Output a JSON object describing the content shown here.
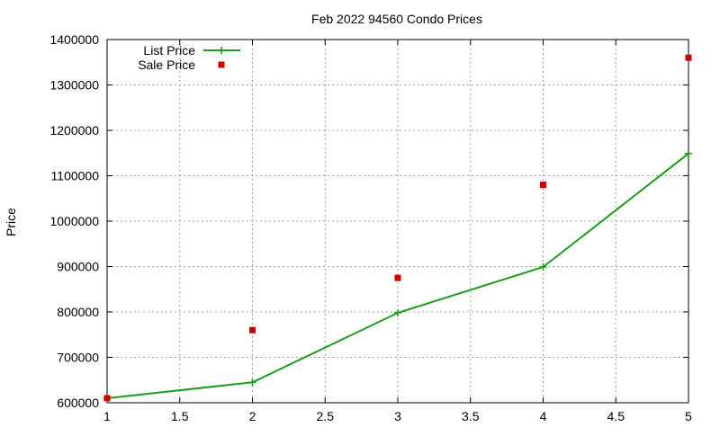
{
  "chart_data": {
    "type": "line",
    "title": "Feb 2022 94560 Condo Prices",
    "xlabel": "",
    "ylabel": "Price",
    "xlim": [
      1,
      5
    ],
    "ylim": [
      600000,
      1400000
    ],
    "xticks": [
      1,
      1.5,
      2,
      2.5,
      3,
      3.5,
      4,
      4.5,
      5
    ],
    "xtick_labels": [
      "1",
      "1.5",
      "2",
      "2.5",
      "3",
      "3.5",
      "4",
      "4.5",
      "5"
    ],
    "yticks": [
      600000,
      700000,
      800000,
      900000,
      1000000,
      1100000,
      1200000,
      1300000,
      1400000
    ],
    "ytick_labels": [
      "600000",
      "700000",
      "800000",
      "900000",
      "1000000",
      "1100000",
      "1200000",
      "1300000",
      "1400000"
    ],
    "grid": true,
    "legend_position": "top-left",
    "series": [
      {
        "name": "List Price",
        "style": "linespoints",
        "color": "#1a9e1a",
        "marker": "plus",
        "x": [
          1,
          2,
          3,
          4,
          5
        ],
        "y": [
          610000,
          645000,
          798000,
          899000,
          1149000
        ]
      },
      {
        "name": "Sale Price",
        "style": "points",
        "color": "#cc0000",
        "marker": "square",
        "x": [
          1,
          2,
          3,
          4,
          5
        ],
        "y": [
          610000,
          760000,
          875000,
          1080000,
          1360000
        ]
      }
    ]
  }
}
